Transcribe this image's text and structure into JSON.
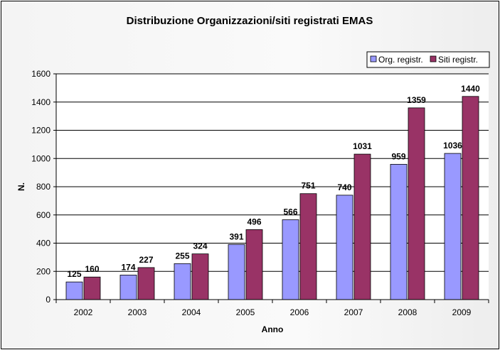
{
  "chart_data": {
    "type": "bar",
    "title": "Distribuzione Organizzazioni/siti registrati EMAS",
    "xlabel": "Anno",
    "ylabel": "N.",
    "categories": [
      "2002",
      "2003",
      "2004",
      "2005",
      "2006",
      "2007",
      "2008",
      "2009"
    ],
    "series": [
      {
        "name": "Org. registr.",
        "values": [
          125,
          174,
          255,
          391,
          566,
          740,
          959,
          1036
        ],
        "color": "#9999ff"
      },
      {
        "name": "Siti registr.",
        "values": [
          160,
          227,
          324,
          496,
          751,
          1031,
          1359,
          1440
        ],
        "color": "#993366"
      }
    ],
    "ylim": [
      0,
      1600
    ],
    "yticks": [
      "0",
      "200",
      "400",
      "600",
      "800",
      "1000",
      "1200",
      "1400",
      "1600"
    ],
    "grid": true,
    "legend": "top-right"
  }
}
